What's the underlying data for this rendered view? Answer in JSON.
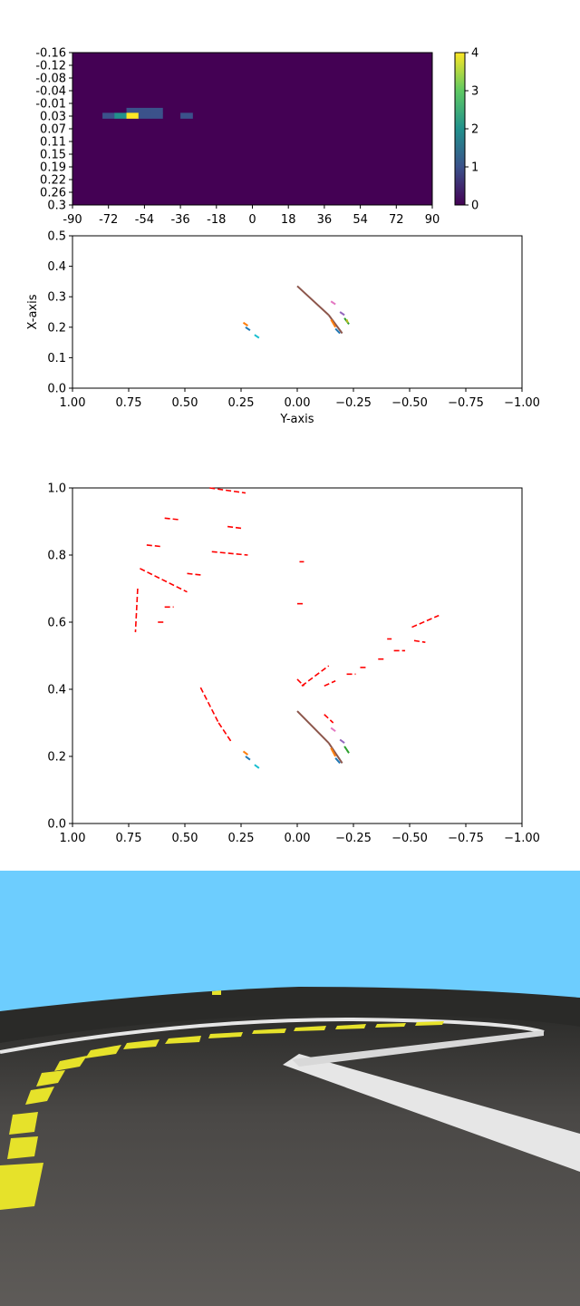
{
  "chart_data": [
    {
      "type": "heatmap",
      "title": "",
      "x_ticks": [
        "-90",
        "-72",
        "-54",
        "-36",
        "-18",
        "0",
        "18",
        "36",
        "54",
        "72",
        "90"
      ],
      "y_ticks": [
        "-0.16",
        "-0.12",
        "-0.08",
        "-0.04",
        "-0.01",
        "0.03",
        "0.07",
        "0.11",
        "0.15",
        "0.19",
        "0.22",
        "0.26",
        "0.3"
      ],
      "colorbar": {
        "ticks": [
          "0",
          "1",
          "2",
          "3",
          "4"
        ],
        "min": 0,
        "max": 4,
        "colormap": "viridis"
      },
      "cells": [
        {
          "x": -60,
          "y": 0.015,
          "value": 1
        },
        {
          "x": -54,
          "y": 0.015,
          "value": 1
        },
        {
          "x": -48,
          "y": 0.015,
          "value": 1
        },
        {
          "x": -72,
          "y": 0.03,
          "value": 1
        },
        {
          "x": -66,
          "y": 0.03,
          "value": 2
        },
        {
          "x": -60,
          "y": 0.03,
          "value": 4
        },
        {
          "x": -54,
          "y": 0.03,
          "value": 1
        },
        {
          "x": -48,
          "y": 0.03,
          "value": 1
        },
        {
          "x": -33,
          "y": 0.03,
          "value": 1
        }
      ]
    },
    {
      "type": "line",
      "xlabel": "Y-axis",
      "ylabel": "X-axis",
      "xlim": [
        1.0,
        -1.0
      ],
      "ylim": [
        0.0,
        0.5
      ],
      "x_ticks": [
        "1.00",
        "0.75",
        "0.50",
        "0.25",
        "0.00",
        "−0.25",
        "−0.50",
        "−0.75",
        "−1.00"
      ],
      "y_ticks": [
        "0.0",
        "0.1",
        "0.2",
        "0.3",
        "0.4",
        "0.5"
      ],
      "series": [
        {
          "color": "#8c564b",
          "points": [
            [
              0.0,
              0.335
            ],
            [
              -0.14,
              0.24
            ]
          ]
        },
        {
          "color": "#8c564b",
          "points": [
            [
              -0.14,
              0.24
            ],
            [
              -0.2,
              0.18
            ]
          ]
        },
        {
          "color": "#e377c2",
          "points": [
            [
              -0.15,
              0.285
            ],
            [
              -0.17,
              0.275
            ]
          ]
        },
        {
          "color": "#9467bd",
          "points": [
            [
              -0.19,
              0.25
            ],
            [
              -0.21,
              0.24
            ]
          ]
        },
        {
          "color": "#2ca02c",
          "points": [
            [
              -0.21,
              0.23
            ],
            [
              -0.23,
              0.21
            ]
          ]
        },
        {
          "color": "#bcbd22",
          "points": [
            [
              -0.22,
              0.225
            ],
            [
              -0.225,
              0.215
            ]
          ]
        },
        {
          "color": "#ff7f0e",
          "points": [
            [
              -0.15,
              0.225
            ],
            [
              -0.17,
              0.2
            ]
          ]
        },
        {
          "color": "#1f77b4",
          "points": [
            [
              -0.17,
              0.195
            ],
            [
              -0.19,
              0.18
            ]
          ]
        },
        {
          "color": "#ff7f0e",
          "points": [
            [
              0.24,
              0.215
            ],
            [
              0.22,
              0.205
            ]
          ]
        },
        {
          "color": "#1f77b4",
          "points": [
            [
              0.23,
              0.2
            ],
            [
              0.21,
              0.19
            ]
          ]
        },
        {
          "color": "#17becf",
          "points": [
            [
              0.19,
              0.175
            ],
            [
              0.17,
              0.165
            ]
          ]
        }
      ]
    },
    {
      "type": "line",
      "xlim": [
        1.0,
        -1.0
      ],
      "ylim": [
        0.0,
        1.0
      ],
      "x_ticks": [
        "1.00",
        "0.75",
        "0.50",
        "0.25",
        "0.00",
        "−0.25",
        "−0.50",
        "−0.75",
        "−1.00"
      ],
      "y_ticks": [
        "0.0",
        "0.2",
        "0.4",
        "0.6",
        "0.8",
        "1.0"
      ],
      "series": [
        {
          "color": "#8c564b",
          "points": [
            [
              0.0,
              0.335
            ],
            [
              -0.14,
              0.24
            ]
          ]
        },
        {
          "color": "#8c564b",
          "points": [
            [
              -0.14,
              0.24
            ],
            [
              -0.2,
              0.18
            ]
          ]
        },
        {
          "color": "#e377c2",
          "points": [
            [
              -0.15,
              0.285
            ],
            [
              -0.17,
              0.275
            ]
          ]
        },
        {
          "color": "#9467bd",
          "points": [
            [
              -0.19,
              0.25
            ],
            [
              -0.21,
              0.24
            ]
          ]
        },
        {
          "color": "#2ca02c",
          "points": [
            [
              -0.21,
              0.23
            ],
            [
              -0.23,
              0.21
            ]
          ]
        },
        {
          "color": "#ff7f0e",
          "points": [
            [
              -0.15,
              0.225
            ],
            [
              -0.17,
              0.2
            ]
          ]
        },
        {
          "color": "#1f77b4",
          "points": [
            [
              -0.17,
              0.195
            ],
            [
              -0.19,
              0.18
            ]
          ]
        },
        {
          "color": "#ff7f0e",
          "points": [
            [
              0.24,
              0.215
            ],
            [
              0.22,
              0.205
            ]
          ]
        },
        {
          "color": "#1f77b4",
          "points": [
            [
              0.23,
              0.2
            ],
            [
              0.21,
              0.19
            ]
          ]
        },
        {
          "color": "#17becf",
          "points": [
            [
              0.19,
              0.175
            ],
            [
              0.17,
              0.165
            ]
          ]
        }
      ],
      "red_dashed_segments": [
        [
          [
            0.39,
            1.0
          ],
          [
            0.23,
            0.985
          ]
        ],
        [
          [
            0.59,
            0.91
          ],
          [
            0.52,
            0.905
          ]
        ],
        [
          [
            0.31,
            0.885
          ],
          [
            0.25,
            0.88
          ]
        ],
        [
          [
            0.67,
            0.83
          ],
          [
            0.6,
            0.825
          ]
        ],
        [
          [
            0.38,
            0.81
          ],
          [
            0.22,
            0.8
          ]
        ],
        [
          [
            0.7,
            0.76
          ],
          [
            0.49,
            0.69
          ]
        ],
        [
          [
            0.49,
            0.745
          ],
          [
            0.42,
            0.74
          ]
        ],
        [
          [
            0.71,
            0.7
          ],
          [
            0.72,
            0.57
          ]
        ],
        [
          [
            0.59,
            0.645
          ],
          [
            0.55,
            0.645
          ]
        ],
        [
          [
            0.62,
            0.6
          ],
          [
            0.59,
            0.6
          ]
        ],
        [
          [
            0.43,
            0.405
          ],
          [
            0.35,
            0.3
          ]
        ],
        [
          [
            0.35,
            0.3
          ],
          [
            0.29,
            0.24
          ]
        ],
        [
          [
            -0.01,
            0.78
          ],
          [
            -0.03,
            0.78
          ]
        ],
        [
          [
            -0.0,
            0.655
          ],
          [
            -0.03,
            0.655
          ]
        ],
        [
          [
            -0.02,
            0.41
          ],
          [
            -0.14,
            0.47
          ]
        ],
        [
          [
            0.0,
            0.43
          ],
          [
            -0.03,
            0.41
          ]
        ],
        [
          [
            -0.12,
            0.41
          ],
          [
            -0.17,
            0.425
          ]
        ],
        [
          [
            -0.22,
            0.445
          ],
          [
            -0.26,
            0.445
          ]
        ],
        [
          [
            -0.28,
            0.465
          ],
          [
            -0.31,
            0.465
          ]
        ],
        [
          [
            -0.36,
            0.49
          ],
          [
            -0.39,
            0.49
          ]
        ],
        [
          [
            -0.4,
            0.55
          ],
          [
            -0.42,
            0.55
          ]
        ],
        [
          [
            -0.43,
            0.515
          ],
          [
            -0.48,
            0.515
          ]
        ],
        [
          [
            -0.51,
            0.585
          ],
          [
            -0.63,
            0.62
          ]
        ],
        [
          [
            -0.52,
            0.545
          ],
          [
            -0.57,
            0.54
          ]
        ],
        [
          [
            -0.12,
            0.325
          ],
          [
            -0.16,
            0.3
          ]
        ]
      ]
    }
  ],
  "camera_view": {
    "sky_color": "#6dcdfe",
    "asphalt_color": "#545250",
    "marking_yellow": "#e6e22a",
    "marking_white": "#e6e6e6"
  }
}
